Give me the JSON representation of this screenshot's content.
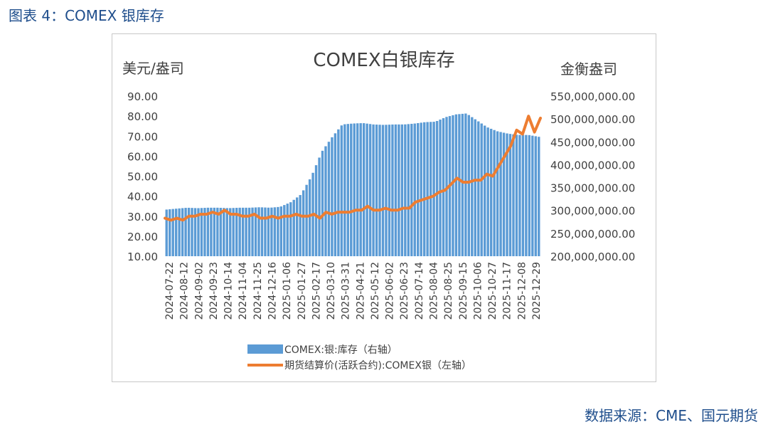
{
  "figure_title": "图表 4：COMEX 银库存",
  "source": "数据来源：CME、国元期货",
  "colors": {
    "bar": "#5b9bd5",
    "line": "#ed7d31",
    "title": "#1f4e8c",
    "text": "#404040"
  },
  "chart_data": {
    "type": "bar",
    "title": "COMEX白银库存",
    "left_axis_label": "美元/盎司",
    "right_axis_label": "金衡盎司",
    "left_ylim": [
      10,
      90
    ],
    "right_ylim": [
      200000000,
      550000000
    ],
    "left_ticks": [
      "90.00",
      "80.00",
      "70.00",
      "60.00",
      "50.00",
      "40.00",
      "30.00",
      "20.00",
      "10.00"
    ],
    "right_ticks": [
      "550,000,000.00",
      "500,000,000.00",
      "450,000,000.00",
      "400,000,000.00",
      "350,000,000.00",
      "300,000,000.00",
      "250,000,000.00",
      "200,000,000.00"
    ],
    "x_ticks": [
      "2024-07-22",
      "2024-08-12",
      "2024-09-02",
      "2024-09-23",
      "2024-10-14",
      "2024-11-04",
      "2024-11-25",
      "2024-12-16",
      "2025-01-06",
      "2025-01-27",
      "2025-02-17",
      "2025-03-10",
      "2025-03-31",
      "2025-04-21",
      "2025-05-12",
      "2025-06-02",
      "2025-06-23",
      "2025-07-14",
      "2025-08-04",
      "2025-08-25",
      "2025-09-15",
      "2025-10-06",
      "2025-10-27",
      "2025-11-17",
      "2025-12-08",
      "2025-12-29"
    ],
    "series": [
      {
        "name": "COMEX:银:库存（右轴）",
        "type": "bar",
        "axis": "right",
        "values": [
          302000000,
          304000000,
          306000000,
          305000000,
          306000000,
          306000000,
          305000000,
          306000000,
          306000000,
          307000000,
          306000000,
          308000000,
          318000000,
          335000000,
          374000000,
          428000000,
          460000000,
          488000000,
          490000000,
          491000000,
          488000000,
          487000000,
          488000000,
          488000000,
          490000000,
          493000000,
          494000000,
          504000000,
          510000000,
          512000000,
          497000000,
          482000000,
          473000000,
          468000000,
          465000000,
          465000000,
          461000000
        ]
      },
      {
        "name": "期货结算价(活跃合约):COMEX银（左轴）",
        "type": "line",
        "axis": "left",
        "values": [
          29,
          28,
          29,
          28,
          30,
          30,
          31,
          31,
          32,
          31,
          33,
          31,
          31,
          30,
          30,
          31,
          29,
          29,
          30,
          29,
          30,
          30,
          31,
          30,
          30,
          31,
          29,
          32,
          31,
          32,
          32,
          32,
          33,
          33,
          35,
          33,
          33,
          34,
          33,
          33,
          34,
          34,
          37,
          38,
          39,
          40,
          42,
          43,
          46,
          49,
          47,
          47,
          48,
          48,
          51,
          50,
          55,
          60,
          65,
          73,
          71,
          80,
          72,
          79
        ]
      }
    ]
  }
}
